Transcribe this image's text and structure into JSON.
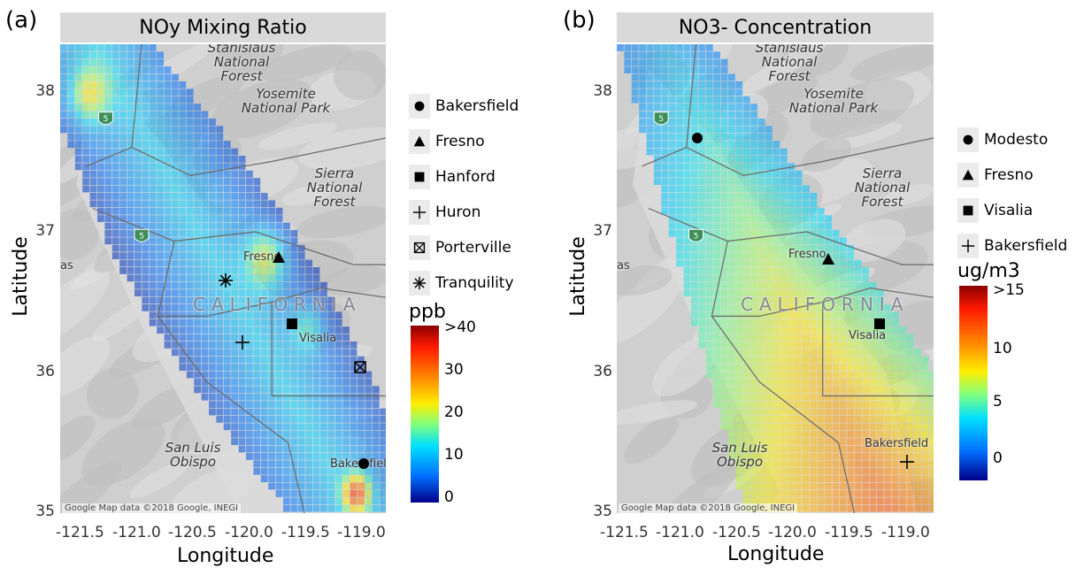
{
  "panel_a": {
    "letter": "(a)",
    "title": "NOy Mixing Ratio",
    "legend": [
      {
        "symbol": "circle-filled",
        "label": "Bakersfield"
      },
      {
        "symbol": "triangle-filled",
        "label": "Fresno"
      },
      {
        "symbol": "square-filled",
        "label": "Hanford"
      },
      {
        "symbol": "plus",
        "label": "Huron"
      },
      {
        "symbol": "square-cross",
        "label": "Porterville"
      },
      {
        "symbol": "asterisk",
        "label": "Tranquility"
      }
    ],
    "colorbar": {
      "title": "ppb",
      "labels": [
        ">40",
        "30",
        "20",
        "10",
        "0"
      ],
      "range": [
        0,
        40
      ]
    },
    "sites": [
      {
        "name": "Bakersfield",
        "symbol": "circle-filled",
        "lon": -119.0,
        "lat": 35.35
      },
      {
        "name": "Fresno",
        "symbol": "triangle-filled",
        "lon": -119.77,
        "lat": 36.8
      },
      {
        "name": "Hanford",
        "symbol": "square-filled",
        "lon": -119.65,
        "lat": 36.33
      },
      {
        "name": "Huron",
        "symbol": "plus",
        "lon": -120.1,
        "lat": 36.2
      },
      {
        "name": "Porterville",
        "symbol": "square-cross",
        "lon": -119.03,
        "lat": 36.03
      },
      {
        "name": "Tranquility",
        "symbol": "asterisk",
        "lon": -120.25,
        "lat": 36.64
      }
    ]
  },
  "panel_b": {
    "letter": "(b)",
    "title": "NO3- Concentration",
    "legend": [
      {
        "symbol": "circle-filled",
        "label": "Modesto"
      },
      {
        "symbol": "triangle-filled",
        "label": "Fresno"
      },
      {
        "symbol": "square-filled",
        "label": "Visalia"
      },
      {
        "symbol": "plus",
        "label": "Bakersfield"
      }
    ],
    "colorbar": {
      "title": "ug/m3",
      "labels": [
        ">15",
        "10",
        "5",
        "0"
      ],
      "range": [
        0,
        15
      ]
    },
    "sites": [
      {
        "name": "Modesto",
        "symbol": "circle-filled",
        "lon": -121.0,
        "lat": 37.64
      },
      {
        "name": "Fresno",
        "symbol": "triangle-filled",
        "lon": -119.78,
        "lat": 36.79
      },
      {
        "name": "Visalia",
        "symbol": "square-filled",
        "lon": -119.3,
        "lat": 36.33
      },
      {
        "name": "Bakersfield",
        "symbol": "plus",
        "lon": -119.05,
        "lat": 35.36
      }
    ]
  },
  "axes": {
    "xlabel": "Longitude",
    "ylabel": "Latitude",
    "xticks": [
      "-121.5",
      "-121.0",
      "-120.5",
      "-120.0",
      "-119.5",
      "-119.0"
    ],
    "yticks": [
      "38",
      "37",
      "36",
      "35"
    ]
  },
  "basemap": {
    "labels_a": [
      "Stanislaus National Forest",
      "Yosemite National Park",
      "Sierra National Forest",
      "CALIFORNIA",
      "Fresno",
      "Visalia",
      "Bakersfield",
      "San Luis Obispo",
      "as"
    ],
    "labels_b": [
      "Stanislaus National Forest",
      "Yosemite National Park",
      "Sierra National Forest",
      "CALIFORNIA",
      "Fresno",
      "Visalia",
      "Bakersfield",
      "San Luis Obispo",
      "as"
    ],
    "attribution": "Google   Map data ©2018 Google, INEGI"
  }
}
